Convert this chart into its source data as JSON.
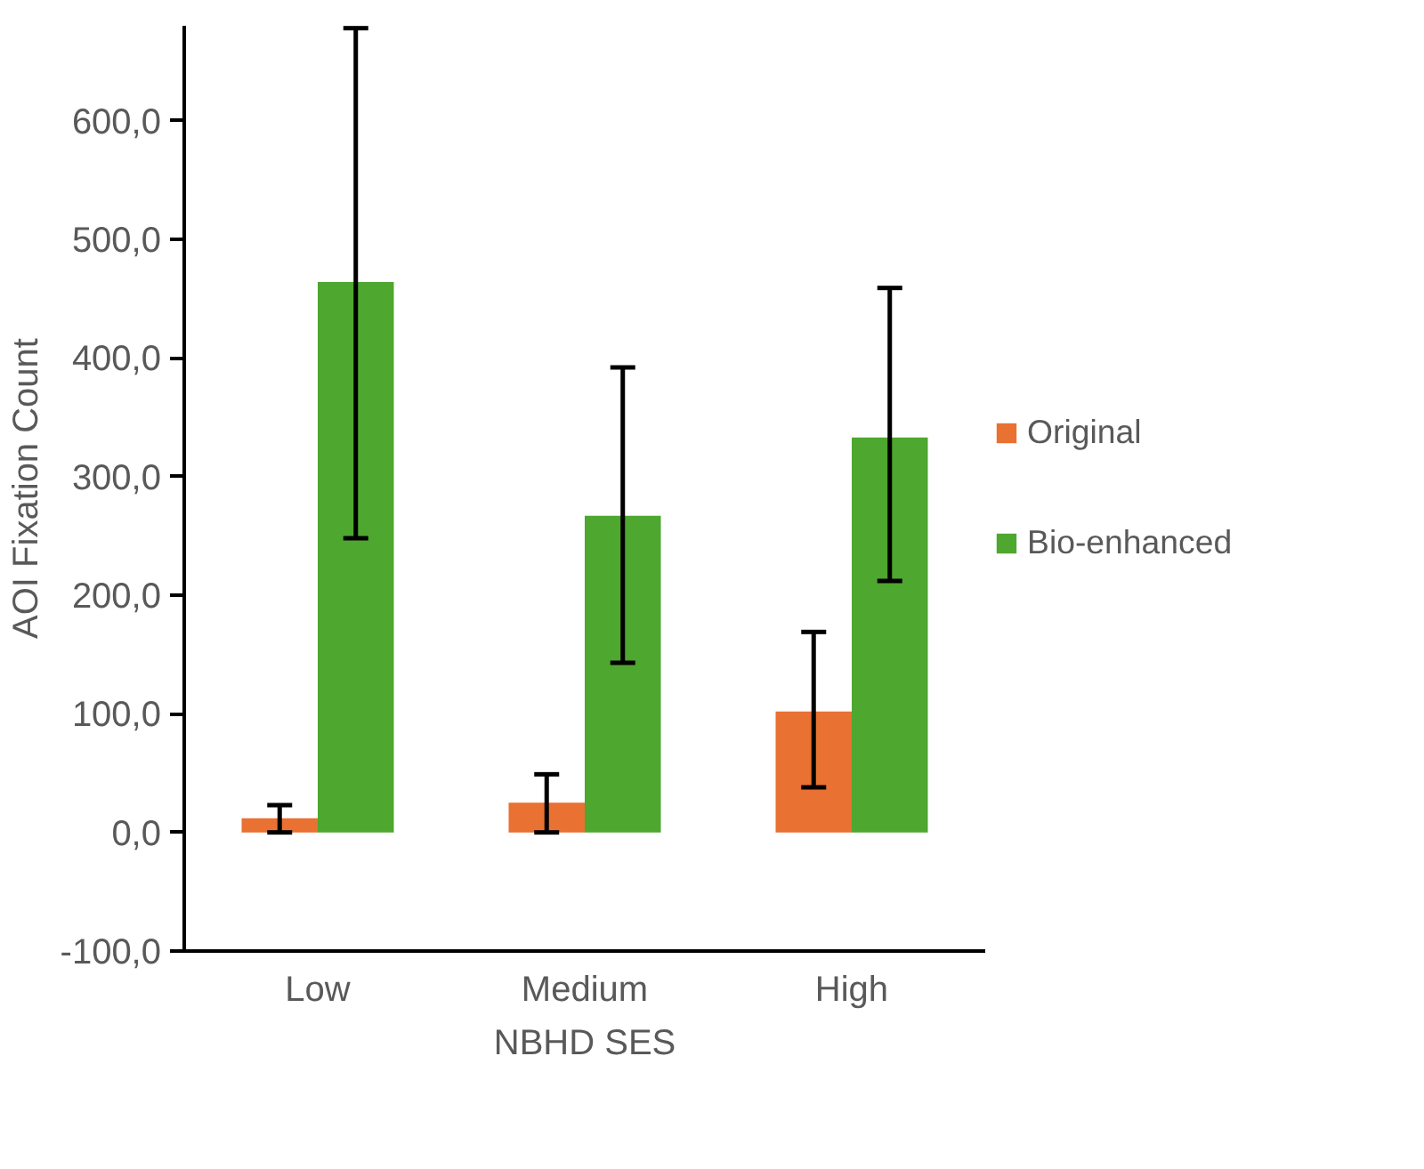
{
  "chart_data": {
    "type": "bar",
    "xlabel": "NBHD SES",
    "ylabel": "AOI Fixation Count",
    "categories": [
      "Low",
      "Medium",
      "High"
    ],
    "series": [
      {
        "name": "Original",
        "color": "#e97132",
        "values": [
          12,
          25,
          102
        ],
        "errors": [
          [
            0,
            23
          ],
          [
            0,
            49
          ],
          [
            38,
            169
          ]
        ]
      },
      {
        "name": "Bio-enhanced",
        "color": "#4ea72e",
        "values": [
          464,
          267,
          333
        ],
        "errors": [
          [
            248,
            678
          ],
          [
            143,
            392
          ],
          [
            212,
            459
          ]
        ]
      }
    ],
    "ylim": [
      -100,
      680
    ],
    "yticks": [
      {
        "value": -100,
        "label": "-100,0"
      },
      {
        "value": 0,
        "label": "0,0"
      },
      {
        "value": 100,
        "label": "100,0"
      },
      {
        "value": 200,
        "label": "200,0"
      },
      {
        "value": 300,
        "label": "300,0"
      },
      {
        "value": 400,
        "label": "400,0"
      },
      {
        "value": 500,
        "label": "500,0"
      },
      {
        "value": 600,
        "label": "600,0"
      }
    ],
    "grid": false,
    "legend": "right"
  }
}
